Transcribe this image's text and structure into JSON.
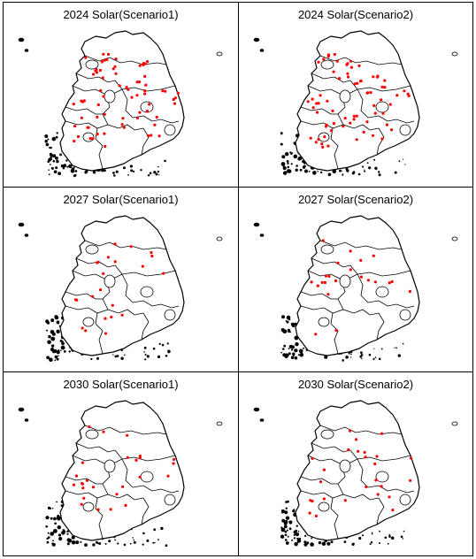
{
  "panels": [
    {
      "title": "2024 Solar(Scenario1)",
      "id": "2024-s1"
    },
    {
      "title": "2024 Solar(Scenario2)",
      "id": "2024-s2"
    },
    {
      "title": "2027 Solar(Scenario1)",
      "id": "2027-s1"
    },
    {
      "title": "2027 Solar(Scenario2)",
      "id": "2027-s2"
    },
    {
      "title": "2030 Solar(Scenario1)",
      "id": "2030-s1"
    },
    {
      "title": "2030 Solar(Scenario2)",
      "id": "2030-s2"
    }
  ],
  "colors": {
    "site_marker": "#ff0000",
    "border": "#000000",
    "land": "#ffffff"
  }
}
